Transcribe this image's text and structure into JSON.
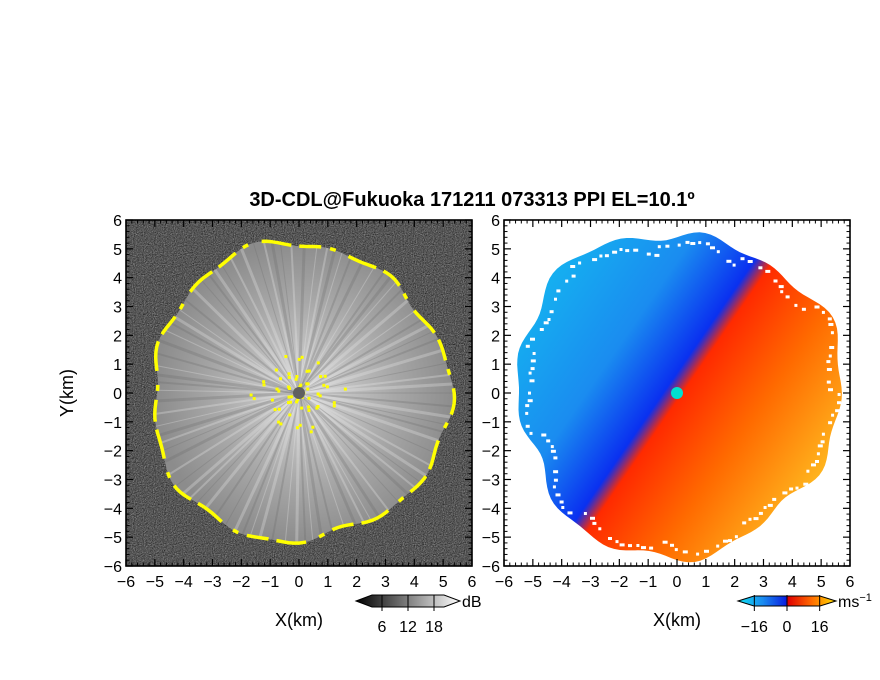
{
  "chart_data": {
    "type": "heatmap",
    "title": "3D-CDL@Fukuoka 171211 073313 PPI EL=10.1º",
    "panels": [
      {
        "name": "reflectivity",
        "xlabel": "X(km)",
        "ylabel": "Y(km)",
        "xlim": [
          -6,
          6
        ],
        "ylim": [
          -6,
          6
        ],
        "xticks": [
          "−6",
          "−5",
          "−4",
          "−3",
          "−2",
          "−1",
          "0",
          "1",
          "2",
          "3",
          "4",
          "5",
          "6"
        ],
        "yticks": [
          "6",
          "5",
          "4",
          "3",
          "2",
          "1",
          "0",
          "−1",
          "−2",
          "−3",
          "−4",
          "−5",
          "−6"
        ],
        "colorbar": {
          "unit": "dB",
          "ticks": [
            "6",
            "12",
            "18"
          ],
          "range": [
            0,
            24
          ],
          "colormap": "grayscale"
        },
        "highlight_color": "#ffff00"
      },
      {
        "name": "radial-velocity",
        "xlabel": "X(km)",
        "xlim": [
          -6,
          6
        ],
        "ylim": [
          -6,
          6
        ],
        "xticks": [
          "−6",
          "−5",
          "−4",
          "−3",
          "−2",
          "−1",
          "0",
          "1",
          "2",
          "3",
          "4",
          "5",
          "6"
        ],
        "yticks": [
          "6",
          "5",
          "4",
          "3",
          "2",
          "1",
          "0",
          "−1",
          "−2",
          "−3",
          "−4",
          "−5",
          "−6"
        ],
        "colorbar": {
          "unit": "ms",
          "unit_exp": "−1",
          "ticks": [
            "−16",
            "0",
            "16"
          ],
          "range": [
            -24,
            24
          ],
          "colormap": "diverging blue-red-yellow"
        }
      }
    ]
  },
  "colors": {
    "frame": "#000000",
    "highlight": "#ffff00",
    "blue": "#0a3cff",
    "cyan": "#18b4f0",
    "red": "#ff3c00",
    "yellow": "#ffd020"
  }
}
